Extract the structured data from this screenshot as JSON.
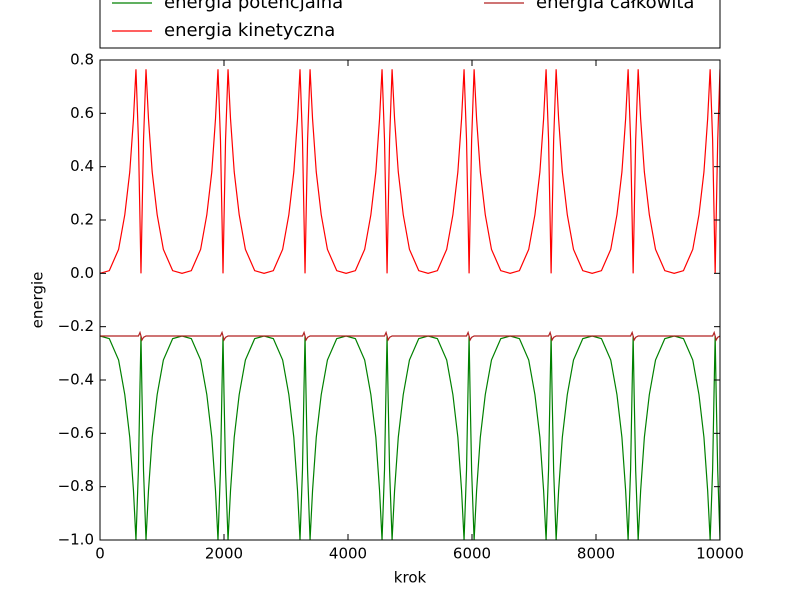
{
  "chart_data": {
    "type": "line",
    "xlabel": "krok",
    "ylabel": "energie",
    "xlim": [
      0,
      10000
    ],
    "ylim": [
      -1.0,
      0.8
    ],
    "xticks": [
      0,
      2000,
      4000,
      6000,
      8000,
      10000
    ],
    "yticks": [
      {
        "value": -1.0,
        "label": "−1.0"
      },
      {
        "value": -0.8,
        "label": "−0.8"
      },
      {
        "value": -0.6,
        "label": "−0.6"
      },
      {
        "value": -0.4,
        "label": "−0.4"
      },
      {
        "value": -0.2,
        "label": "−0.2"
      },
      {
        "value": 0.0,
        "label": "0.0"
      },
      0.2,
      0.4,
      0.6,
      0.8
    ],
    "grid": false,
    "legend": "upper center",
    "legend_columns": 2,
    "x": [
      0,
      150,
      300,
      400,
      480,
      540,
      580,
      620,
      645,
      661,
      677,
      702,
      742,
      782,
      842,
      922,
      1022,
      1172,
      1323,
      1473,
      1623,
      1723,
      1803,
      1863,
      1903,
      1943,
      1968,
      1984,
      2000,
      2025,
      2065,
      2105,
      2165,
      2245,
      2345,
      2495,
      2646,
      2796,
      2946,
      3046,
      3126,
      3186,
      3226,
      3266,
      3291,
      3307,
      3323,
      3348,
      3388,
      3428,
      3488,
      3568,
      3668,
      3818,
      3969,
      4119,
      4269,
      4369,
      4449,
      4509,
      4549,
      4589,
      4614,
      4630,
      4646,
      4671,
      4711,
      4751,
      4811,
      4891,
      4991,
      5141,
      5292,
      5442,
      5592,
      5692,
      5772,
      5832,
      5872,
      5912,
      5937,
      5953,
      5969,
      5994,
      6034,
      6074,
      6134,
      6214,
      6314,
      6464,
      6615,
      6765,
      6915,
      7015,
      7095,
      7155,
      7195,
      7235,
      7260,
      7276,
      7292,
      7317,
      7357,
      7397,
      7457,
      7537,
      7637,
      7787,
      7938,
      8088,
      8238,
      8338,
      8418,
      8478,
      8518,
      8558,
      8583,
      8599,
      8615,
      8640,
      8680,
      8720,
      8780,
      8860,
      8960,
      9110,
      9261,
      9411,
      9561,
      9661,
      9741,
      9801,
      9841,
      9881,
      9906,
      9922,
      9938,
      9963,
      10000
    ],
    "series": [
      {
        "name": "energia potencjalna",
        "color": "#008000",
        "values": [
          -0.235,
          -0.245,
          -0.325,
          -0.455,
          -0.615,
          -0.815,
          -1.0,
          -0.735,
          -0.422,
          -0.235,
          -0.45,
          -0.74,
          -1.0,
          -0.815,
          -0.615,
          -0.455,
          -0.325,
          -0.245,
          -0.235,
          -0.245,
          -0.325,
          -0.455,
          -0.615,
          -0.815,
          -1.0,
          -0.735,
          -0.422,
          -0.235,
          -0.45,
          -0.74,
          -1.0,
          -0.815,
          -0.615,
          -0.455,
          -0.325,
          -0.245,
          -0.235,
          -0.245,
          -0.325,
          -0.455,
          -0.615,
          -0.815,
          -1.0,
          -0.735,
          -0.422,
          -0.235,
          -0.45,
          -0.74,
          -1.0,
          -0.815,
          -0.615,
          -0.455,
          -0.325,
          -0.245,
          -0.235,
          -0.245,
          -0.325,
          -0.455,
          -0.615,
          -0.815,
          -1.0,
          -0.735,
          -0.422,
          -0.235,
          -0.45,
          -0.74,
          -1.0,
          -0.815,
          -0.615,
          -0.455,
          -0.325,
          -0.245,
          -0.235,
          -0.245,
          -0.325,
          -0.455,
          -0.615,
          -0.815,
          -1.0,
          -0.735,
          -0.422,
          -0.235,
          -0.45,
          -0.74,
          -1.0,
          -0.815,
          -0.615,
          -0.455,
          -0.325,
          -0.245,
          -0.235,
          -0.245,
          -0.325,
          -0.455,
          -0.615,
          -0.815,
          -1.0,
          -0.735,
          -0.422,
          -0.235,
          -0.45,
          -0.74,
          -1.0,
          -0.815,
          -0.615,
          -0.455,
          -0.325,
          -0.245,
          -0.235,
          -0.245,
          -0.325,
          -0.455,
          -0.615,
          -0.815,
          -1.0,
          -0.735,
          -0.422,
          -0.235,
          -0.45,
          -0.74,
          -1.0,
          -0.815,
          -0.615,
          -0.455,
          -0.325,
          -0.245,
          -0.235,
          -0.245,
          -0.325,
          -0.455,
          -0.615,
          -0.815,
          -1.0,
          -0.735,
          -0.422,
          -0.235,
          -0.45,
          -0.74,
          -1.0
        ]
      },
      {
        "name": "energia kinetyczna",
        "color": "#ff0000",
        "values": [
          0,
          0.01,
          0.09,
          0.22,
          0.38,
          0.58,
          0.765,
          0.5,
          0.2,
          0,
          0.2,
          0.5,
          0.765,
          0.58,
          0.38,
          0.22,
          0.09,
          0.01,
          0,
          0.01,
          0.09,
          0.22,
          0.38,
          0.58,
          0.765,
          0.5,
          0.2,
          0,
          0.2,
          0.5,
          0.765,
          0.58,
          0.38,
          0.22,
          0.09,
          0.01,
          0,
          0.01,
          0.09,
          0.22,
          0.38,
          0.58,
          0.765,
          0.5,
          0.2,
          0,
          0.2,
          0.5,
          0.765,
          0.58,
          0.38,
          0.22,
          0.09,
          0.01,
          0,
          0.01,
          0.09,
          0.22,
          0.38,
          0.58,
          0.765,
          0.5,
          0.2,
          0,
          0.2,
          0.5,
          0.765,
          0.58,
          0.38,
          0.22,
          0.09,
          0.01,
          0,
          0.01,
          0.09,
          0.22,
          0.38,
          0.58,
          0.765,
          0.5,
          0.2,
          0,
          0.2,
          0.5,
          0.765,
          0.58,
          0.38,
          0.22,
          0.09,
          0.01,
          0,
          0.01,
          0.09,
          0.22,
          0.38,
          0.58,
          0.765,
          0.5,
          0.2,
          0,
          0.2,
          0.5,
          0.765,
          0.58,
          0.38,
          0.22,
          0.09,
          0.01,
          0,
          0.01,
          0.09,
          0.22,
          0.38,
          0.58,
          0.765,
          0.5,
          0.2,
          0,
          0.2,
          0.5,
          0.765,
          0.58,
          0.38,
          0.22,
          0.09,
          0.01,
          0,
          0.01,
          0.09,
          0.22,
          0.38,
          0.58,
          0.765,
          0.5,
          0.2,
          0,
          0.2,
          0.5,
          0.765
        ]
      },
      {
        "name": "energia całkowita",
        "color": "#b22222",
        "values": [
          -0.235,
          -0.235,
          -0.235,
          -0.235,
          -0.235,
          -0.235,
          -0.235,
          -0.235,
          -0.222,
          -0.235,
          -0.25,
          -0.24,
          -0.235,
          -0.235,
          -0.235,
          -0.235,
          -0.235,
          -0.235,
          -0.235,
          -0.235,
          -0.235,
          -0.235,
          -0.235,
          -0.235,
          -0.235,
          -0.235,
          -0.222,
          -0.235,
          -0.25,
          -0.24,
          -0.235,
          -0.235,
          -0.235,
          -0.235,
          -0.235,
          -0.235,
          -0.235,
          -0.235,
          -0.235,
          -0.235,
          -0.235,
          -0.235,
          -0.235,
          -0.235,
          -0.222,
          -0.235,
          -0.25,
          -0.24,
          -0.235,
          -0.235,
          -0.235,
          -0.235,
          -0.235,
          -0.235,
          -0.235,
          -0.235,
          -0.235,
          -0.235,
          -0.235,
          -0.235,
          -0.235,
          -0.235,
          -0.222,
          -0.235,
          -0.25,
          -0.24,
          -0.235,
          -0.235,
          -0.235,
          -0.235,
          -0.235,
          -0.235,
          -0.235,
          -0.235,
          -0.235,
          -0.235,
          -0.235,
          -0.235,
          -0.235,
          -0.235,
          -0.222,
          -0.235,
          -0.25,
          -0.24,
          -0.235,
          -0.235,
          -0.235,
          -0.235,
          -0.235,
          -0.235,
          -0.235,
          -0.235,
          -0.235,
          -0.235,
          -0.235,
          -0.235,
          -0.235,
          -0.235,
          -0.222,
          -0.235,
          -0.25,
          -0.24,
          -0.235,
          -0.235,
          -0.235,
          -0.235,
          -0.235,
          -0.235,
          -0.235,
          -0.235,
          -0.235,
          -0.235,
          -0.235,
          -0.235,
          -0.235,
          -0.235,
          -0.222,
          -0.235,
          -0.25,
          -0.24,
          -0.235,
          -0.235,
          -0.235,
          -0.235,
          -0.235,
          -0.235,
          -0.235,
          -0.235,
          -0.235,
          -0.235,
          -0.235,
          -0.235,
          -0.235,
          -0.235,
          -0.222,
          -0.235,
          -0.25,
          -0.24,
          -0.235
        ]
      }
    ]
  }
}
